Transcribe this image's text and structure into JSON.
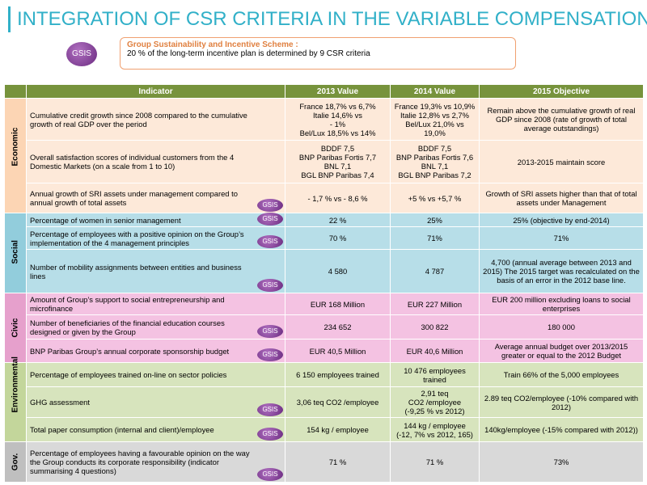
{
  "title": "INTEGRATION OF CSR CRITERIA IN THE VARIABLE COMPENSATION",
  "badge": "GSIS",
  "scheme": {
    "title": "Group Sustainability and Incentive Scheme :",
    "text": "20 % of the long-term incentive plan is determined by 9 CSR criteria"
  },
  "table": {
    "headers": [
      "Indicator",
      "2013 Value",
      "2014 Value",
      "2015 Objective"
    ],
    "groups": [
      {
        "name": "Economic",
        "rows": [
          {
            "indicator": "Cumulative credit growth since 2008 compared to the cumulative growth of real GDP over the period",
            "gsis": false,
            "v2013": [
              "France 18,7% vs 6,7%",
              "Italie 14,6% vs",
              "- 1%",
              "Bel/Lux 18,5% vs 14%"
            ],
            "v2014": [
              "France 19,3% vs 10,9%",
              "Italie 12,8% vs 2,7%",
              "Bel/Lux 21,0% vs 19,0%"
            ],
            "objective": [
              "Remain above the cumulative growth of real GDP since 2008 (rate of growth of total average outstandings)"
            ]
          },
          {
            "indicator": "Overall satisfaction scores of individual customers from the 4 Domestic Markets (on a scale from 1 to 10)",
            "gsis": false,
            "v2013": [
              "BDDF 7,5",
              "BNP Paribas Fortis 7,7",
              "BNL 7,1",
              "BGL BNP Paribas 7,4"
            ],
            "v2014": [
              "BDDF 7,5",
              "BNP Paribas Fortis 7,6",
              "BNL 7,1",
              "BGL BNP Paribas 7,2"
            ],
            "objective": [
              "2013-2015 maintain score"
            ]
          },
          {
            "indicator": "Annual growth of SRI assets under management compared to annual growth of total assets",
            "gsis": true,
            "v2013": [
              "- 1,7 % vs - 8,6 %"
            ],
            "v2014": [
              "+5 % vs +5,7 %"
            ],
            "objective": [
              "Growth of SRI assets higher than that of total assets under Management"
            ]
          }
        ]
      },
      {
        "name": "Social",
        "rows": [
          {
            "indicator": "Percentage of women in senior management",
            "gsis": true,
            "v2013": [
              "22 %"
            ],
            "v2014": [
              "25%"
            ],
            "objective": [
              "25% (objective by end-2014)"
            ]
          },
          {
            "indicator": "Percentage of employees with a positive opinion on the Group’s implementation of the 4 management principles",
            "gsis": true,
            "v2013": [
              "70 %"
            ],
            "v2014": [
              "71%"
            ],
            "objective": [
              "71%"
            ]
          },
          {
            "indicator": "Number of mobility assignments between entities and business lines",
            "gsis": true,
            "v2013": [
              "4 580"
            ],
            "v2014": [
              "4 787"
            ],
            "objective": [
              "4,700 (annual average between 2013 and 2015) The 2015 target was recalculated on the basis of an error in the 2012 base line."
            ]
          }
        ]
      },
      {
        "name": "Civic",
        "rows": [
          {
            "indicator": "Amount of Group’s support to social entrepreneurship and microfinance",
            "gsis": false,
            "v2013": [
              "EUR 168 Million"
            ],
            "v2014": [
              "EUR 227 Million"
            ],
            "objective": [
              "EUR 200 million excluding loans to social enterprises"
            ]
          },
          {
            "indicator": "Number of beneficiaries of the financial education courses designed or given by the Group",
            "gsis": true,
            "v2013": [
              "234 652"
            ],
            "v2014": [
              "300 822"
            ],
            "objective": [
              "180 000"
            ]
          },
          {
            "indicator": "BNP Paribas Group’s annual corporate sponsorship budget",
            "gsis": true,
            "v2013": [
              "EUR 40,5 Million"
            ],
            "v2014": [
              "EUR 40,6 Million"
            ],
            "objective": [
              "Average annual budget over 2013/2015 greater or equal to the 2012 Budget"
            ]
          }
        ]
      },
      {
        "name": "Environmental",
        "rows": [
          {
            "indicator": "Percentage of employees trained on-line on sector policies",
            "gsis": false,
            "v2013": [
              "6 150 employees trained"
            ],
            "v2014": [
              "10 476 employees trained"
            ],
            "objective": [
              "Train 66% of the 5,000 employees"
            ]
          },
          {
            "indicator": "GHG assessment",
            "gsis": true,
            "v2013": [
              "3,06 teq CO2 /employee"
            ],
            "v2014": [
              "2,91 teq",
              "CO2 /employee",
              "(-9,25 % vs 2012)"
            ],
            "objective": [
              "2.89 teq CO2/employee (-10% compared with 2012)"
            ]
          },
          {
            "indicator": "Total paper consumption (internal and client)/employee",
            "gsis": true,
            "v2013": [
              "154 kg / employee"
            ],
            "v2014": [
              "144 kg / employee",
              "(-12, 7% vs 2012, 165)"
            ],
            "objective": [
              "140kg/employee (-15% compared with 2012))"
            ]
          }
        ]
      },
      {
        "name": "Gov.",
        "rows": [
          {
            "indicator": "Percentage of employees having a favourable opinion on the way the Group conducts its corporate responsibility (indicator summarising 4 questions)",
            "gsis": true,
            "v2013": [
              "71 %"
            ],
            "v2014": [
              "71 %"
            ],
            "objective": [
              "73%"
            ]
          }
        ]
      }
    ]
  }
}
